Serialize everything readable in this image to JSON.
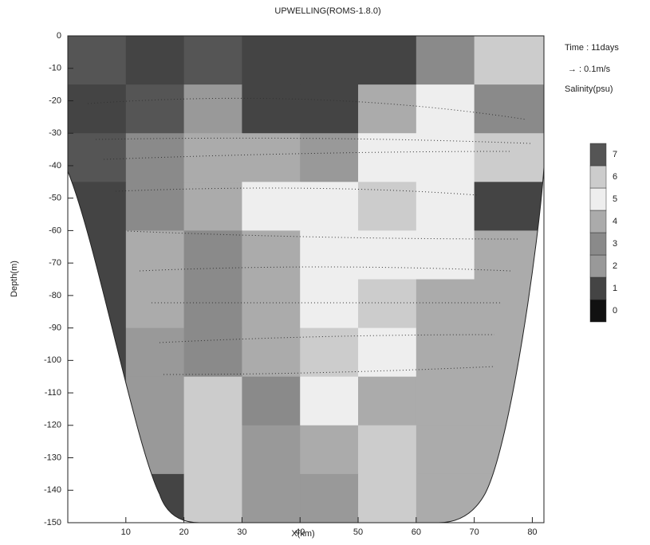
{
  "chart_data": {
    "type": "contour",
    "title": "UPWELLING(ROMS-1.8.0)",
    "x_label": "X(km)",
    "y_label": "Depth(m)",
    "annotations": [
      "Time : 11days",
      "→ : 0.1m/s"
    ],
    "colorbar_label": "Salinity(psu)",
    "xlim": [
      0,
      82
    ],
    "ylim": [
      -150,
      0
    ],
    "xticks": [
      10,
      20,
      30,
      40,
      50,
      60,
      70,
      80
    ],
    "yticks": [
      0,
      -10,
      -20,
      -30,
      -40,
      -50,
      -60,
      -70,
      -80,
      -90,
      -100,
      -110,
      -120,
      -130,
      -140,
      -150
    ],
    "x": [
      5,
      15,
      25,
      35,
      45,
      55,
      65,
      75
    ],
    "y": [
      -7.5,
      -22.5,
      -37.5,
      -52.5,
      -67.5,
      -82.5,
      -97.5,
      -112.5,
      -127.5,
      -142.5
    ],
    "z": [
      [
        7,
        1,
        7,
        1,
        1,
        1,
        3,
        6
      ],
      [
        1,
        7,
        2,
        1,
        1,
        4,
        5,
        3
      ],
      [
        7,
        3,
        4,
        4,
        2,
        5,
        5,
        6
      ],
      [
        1,
        3,
        4,
        5,
        5,
        6,
        5,
        1
      ],
      [
        1,
        4,
        3,
        4,
        5,
        5,
        5,
        4
      ],
      [
        1,
        4,
        3,
        4,
        5,
        6,
        4,
        4
      ],
      [
        1,
        2,
        3,
        4,
        6,
        5,
        4,
        4
      ],
      [
        1,
        2,
        6,
        3,
        5,
        4,
        4,
        4
      ],
      [
        1,
        2,
        6,
        2,
        4,
        6,
        4,
        4
      ],
      [
        1,
        1,
        6,
        2,
        2,
        6,
        4,
        4
      ]
    ],
    "levels": [
      0,
      1,
      2,
      3,
      4,
      5,
      6,
      7
    ],
    "level_colors": [
      "#111111",
      "#444444",
      "#999999",
      "#8a8a8a",
      "#ababab",
      "#eeeeee",
      "#cccccc",
      "#555555"
    ]
  }
}
